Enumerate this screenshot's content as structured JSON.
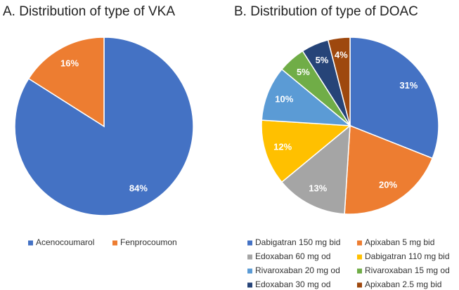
{
  "chart_data": [
    {
      "type": "pie",
      "title": "A. Distribution of type of VKA",
      "categories": [
        "Acenocoumarol",
        "Fenprocoumon"
      ],
      "values": [
        84,
        16
      ],
      "value_labels": [
        "84%",
        "16%"
      ],
      "colors": [
        "#4472c4",
        "#ed7d31"
      ],
      "legend": "bottom"
    },
    {
      "type": "pie",
      "title": "B. Distribution of type of DOAC",
      "categories": [
        "Dabigatran 150 mg bid",
        "Apixaban 5 mg bid",
        "Edoxaban 60 mg od",
        "Dabigatran 110 mg bid",
        "Rivaroxaban 20 mg od",
        "Rivaroxaban 15 mg od",
        "Edoxaban 30 mg od",
        "Apixaban 2.5 mg bid"
      ],
      "values": [
        31,
        20,
        13,
        12,
        10,
        5,
        5,
        4
      ],
      "value_labels": [
        "31%",
        "20%",
        "13%",
        "12%",
        "10%",
        "5%",
        "5%",
        "4%"
      ],
      "colors": [
        "#4472c4",
        "#ed7d31",
        "#a5a5a5",
        "#ffc000",
        "#5b9bd5",
        "#70ad47",
        "#264478",
        "#9e480e"
      ],
      "legend": "bottom"
    }
  ]
}
